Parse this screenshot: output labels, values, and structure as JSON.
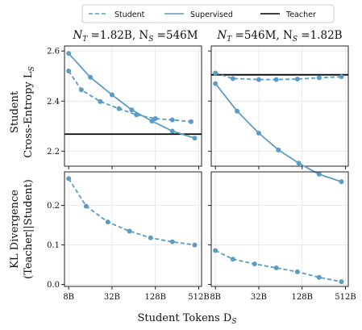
{
  "chart_data": {
    "type": "line",
    "colors": {
      "student": "#5b9bc4",
      "supervised": "#5b9bc4",
      "teacher": "#000000"
    },
    "legend": {
      "placement": "top",
      "entries": [
        {
          "label": "Student",
          "style": "dashed"
        },
        {
          "label": "Supervised",
          "style": "solid"
        },
        {
          "label": "Teacher",
          "style": "solid-black"
        }
      ]
    },
    "x_axis": {
      "label": "Student Tokens D",
      "label_sub": "S",
      "scale": "log2",
      "ticks": [
        8,
        32,
        128,
        512
      ],
      "tick_labels": [
        "8B",
        "32B",
        "128B",
        "512B"
      ]
    },
    "row_labels": [
      {
        "line1": "Student",
        "line2": "Cross-Entropy L",
        "line2_sub": "S"
      },
      {
        "line1": "KL Divergence",
        "line2": "(Teacher||Student)",
        "line2_sub": ""
      }
    ],
    "columns": [
      {
        "title_a": "N",
        "title_a_sub": "T",
        "title_b": " =1.82B, N",
        "title_b_sub": "S",
        "title_c": " =546M"
      },
      {
        "title_a": "N",
        "title_a_sub": "T",
        "title_b": " =546M, N",
        "title_b_sub": "S",
        "title_c": " =1.82B"
      }
    ],
    "panels": [
      {
        "row": 0,
        "col": 0,
        "ylim": [
          2.14,
          2.62
        ],
        "yticks": [
          2.2,
          2.4,
          2.6
        ],
        "ytick_labels": [
          "2.2",
          "2.4",
          "2.6"
        ],
        "x": [
          8,
          12,
          22,
          40,
          70,
          128,
          220,
          400
        ],
        "student": [
          2.52,
          2.445,
          2.398,
          2.37,
          2.345,
          2.33,
          2.325,
          2.318
        ],
        "x_supervised": [
          8,
          16,
          32,
          60,
          115,
          220,
          450
        ],
        "supervised": [
          2.59,
          2.495,
          2.425,
          2.365,
          2.32,
          2.28,
          2.252
        ],
        "teacher": 2.268
      },
      {
        "row": 0,
        "col": 1,
        "ylim": [
          2.14,
          2.62
        ],
        "yticks": [
          2.2,
          2.4,
          2.6
        ],
        "ytick_labels": [
          "2.2",
          "2.4",
          "2.6"
        ],
        "x": [
          8,
          14,
          32,
          56,
          110,
          220,
          450
        ],
        "student": [
          2.512,
          2.49,
          2.486,
          2.486,
          2.488,
          2.493,
          2.497
        ],
        "x_supervised": [
          8,
          16,
          32,
          60,
          115,
          220,
          450
        ],
        "supervised": [
          2.47,
          2.36,
          2.272,
          2.205,
          2.152,
          2.108,
          2.078
        ],
        "teacher": 2.505
      },
      {
        "row": 1,
        "col": 0,
        "ylim": [
          -0.005,
          0.285
        ],
        "yticks": [
          0.0,
          0.1,
          0.2
        ],
        "ytick_labels": [
          "0.0",
          "0.1",
          "0.2"
        ],
        "x": [
          8,
          14,
          28,
          56,
          110,
          220,
          450
        ],
        "student": [
          0.268,
          0.198,
          0.158,
          0.135,
          0.118,
          0.108,
          0.1
        ]
      },
      {
        "row": 1,
        "col": 1,
        "ylim": [
          -0.005,
          0.285
        ],
        "yticks": [
          0.0,
          0.1,
          0.2
        ],
        "ytick_labels": [
          "0.0",
          "0.1",
          "0.2"
        ],
        "x": [
          8,
          14,
          28,
          56,
          110,
          220,
          450
        ],
        "student": [
          0.086,
          0.064,
          0.052,
          0.042,
          0.032,
          0.018,
          0.007
        ]
      }
    ]
  }
}
